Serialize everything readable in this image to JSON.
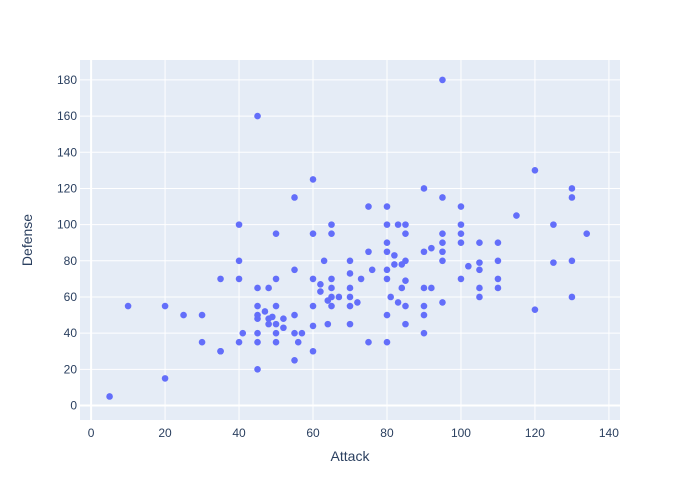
{
  "chart_data": {
    "type": "scatter",
    "title": "",
    "xlabel": "Attack",
    "ylabel": "Defense",
    "xlim": [
      -3,
      143
    ],
    "ylim": [
      -8,
      191
    ],
    "xticks": [
      0,
      20,
      40,
      60,
      80,
      100,
      120,
      140
    ],
    "yticks": [
      0,
      20,
      40,
      60,
      80,
      100,
      120,
      140,
      160,
      180
    ],
    "grid": true,
    "colors": {
      "plot_bg": "#e5ecf6",
      "marker": "#636efa",
      "text": "#2a3f5f"
    },
    "points": [
      [
        5,
        5
      ],
      [
        10,
        55
      ],
      [
        20,
        55
      ],
      [
        20,
        15
      ],
      [
        25,
        50
      ],
      [
        30,
        50
      ],
      [
        30,
        35
      ],
      [
        35,
        70
      ],
      [
        35,
        30
      ],
      [
        35,
        30
      ],
      [
        40,
        100
      ],
      [
        40,
        80
      ],
      [
        40,
        70
      ],
      [
        40,
        35
      ],
      [
        41,
        40
      ],
      [
        45,
        160
      ],
      [
        45,
        65
      ],
      [
        45,
        55
      ],
      [
        45,
        50
      ],
      [
        45,
        48
      ],
      [
        45,
        40
      ],
      [
        45,
        35
      ],
      [
        45,
        20
      ],
      [
        47,
        52
      ],
      [
        48,
        65
      ],
      [
        48,
        48
      ],
      [
        48,
        45
      ],
      [
        49,
        49
      ],
      [
        50,
        95
      ],
      [
        50,
        70
      ],
      [
        50,
        55
      ],
      [
        50,
        45
      ],
      [
        50,
        40
      ],
      [
        50,
        35
      ],
      [
        52,
        48
      ],
      [
        52,
        43
      ],
      [
        55,
        115
      ],
      [
        55,
        75
      ],
      [
        55,
        50
      ],
      [
        55,
        40
      ],
      [
        55,
        25
      ],
      [
        56,
        35
      ],
      [
        57,
        40
      ],
      [
        60,
        125
      ],
      [
        60,
        95
      ],
      [
        60,
        70
      ],
      [
        60,
        55
      ],
      [
        60,
        44
      ],
      [
        60,
        30
      ],
      [
        62,
        67
      ],
      [
        62,
        63
      ],
      [
        63,
        80
      ],
      [
        64,
        58
      ],
      [
        64,
        45
      ],
      [
        65,
        100
      ],
      [
        65,
        95
      ],
      [
        65,
        70
      ],
      [
        65,
        65
      ],
      [
        65,
        60
      ],
      [
        65,
        55
      ],
      [
        67,
        60
      ],
      [
        70,
        80
      ],
      [
        70,
        73
      ],
      [
        70,
        65
      ],
      [
        70,
        60
      ],
      [
        70,
        55
      ],
      [
        70,
        45
      ],
      [
        72,
        57
      ],
      [
        73,
        70
      ],
      [
        75,
        110
      ],
      [
        75,
        85
      ],
      [
        75,
        35
      ],
      [
        76,
        75
      ],
      [
        80,
        110
      ],
      [
        80,
        100
      ],
      [
        80,
        90
      ],
      [
        80,
        85
      ],
      [
        80,
        75
      ],
      [
        80,
        70
      ],
      [
        80,
        50
      ],
      [
        80,
        35
      ],
      [
        81,
        60
      ],
      [
        82,
        83
      ],
      [
        82,
        78
      ],
      [
        83,
        100
      ],
      [
        83,
        57
      ],
      [
        84,
        65
      ],
      [
        84,
        78
      ],
      [
        85,
        100
      ],
      [
        85,
        95
      ],
      [
        85,
        80
      ],
      [
        85,
        69
      ],
      [
        85,
        55
      ],
      [
        85,
        45
      ],
      [
        90,
        120
      ],
      [
        90,
        85
      ],
      [
        90,
        65
      ],
      [
        90,
        55
      ],
      [
        90,
        50
      ],
      [
        90,
        40
      ],
      [
        92,
        87
      ],
      [
        92,
        65
      ],
      [
        95,
        180
      ],
      [
        95,
        115
      ],
      [
        95,
        95
      ],
      [
        95,
        90
      ],
      [
        95,
        85
      ],
      [
        95,
        80
      ],
      [
        95,
        57
      ],
      [
        100,
        110
      ],
      [
        100,
        100
      ],
      [
        100,
        95
      ],
      [
        100,
        90
      ],
      [
        100,
        70
      ],
      [
        102,
        77
      ],
      [
        105,
        90
      ],
      [
        105,
        79
      ],
      [
        105,
        75
      ],
      [
        105,
        65
      ],
      [
        105,
        60
      ],
      [
        110,
        90
      ],
      [
        110,
        80
      ],
      [
        110,
        70
      ],
      [
        110,
        65
      ],
      [
        115,
        105
      ],
      [
        120,
        130
      ],
      [
        120,
        53
      ],
      [
        125,
        100
      ],
      [
        125,
        79
      ],
      [
        130,
        120
      ],
      [
        130,
        115
      ],
      [
        130,
        80
      ],
      [
        130,
        60
      ],
      [
        134,
        95
      ]
    ]
  }
}
